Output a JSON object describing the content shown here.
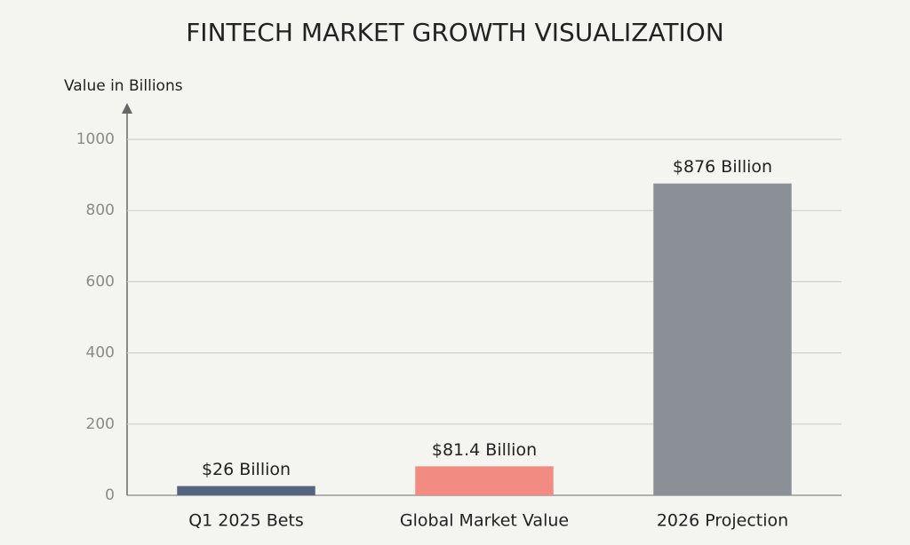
{
  "chart_data": {
    "type": "bar",
    "title": "FINTECH MARKET GROWTH VISUALIZATION",
    "y_label": "Value in Billions",
    "categories": [
      "Q1 2025 Bets",
      "Global Market Value",
      "2026 Projection"
    ],
    "values": [
      26,
      81.4,
      876
    ],
    "value_labels": [
      "$26 Billion",
      "$81.4 Billion",
      "$876 Billion"
    ],
    "colors": [
      "#56657f",
      "#f28b82",
      "#8a9096"
    ],
    "ylim": [
      0,
      1000
    ],
    "yticks": [
      0,
      200,
      400,
      600,
      800,
      1000
    ],
    "grid": true
  }
}
